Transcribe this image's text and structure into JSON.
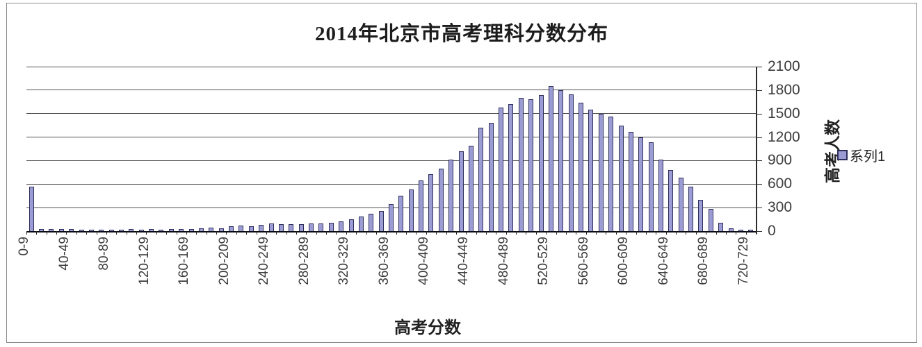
{
  "chart": {
    "title": "2014年北京市高考理科分数分布",
    "x_axis_title": "高考分数",
    "y_axis_title": "高考人数",
    "legend_label": "系列1",
    "bar_fill_color": "#9c9cd4",
    "bar_border_color": "#2e2e5c",
    "gridline_color": "#4f4f4f"
  },
  "chart_data": {
    "type": "bar",
    "title": "2014年北京市高考理科分数分布",
    "xlabel": "高考分数",
    "ylabel": "高考人数",
    "series_name": "系列1",
    "ylim": [
      0,
      2100
    ],
    "y_ticks": [
      0,
      300,
      600,
      900,
      1200,
      1500,
      1800,
      2100
    ],
    "grid": true,
    "legend_position": "right",
    "x_label_every": 4,
    "categories": [
      "0-9",
      "10-19",
      "20-29",
      "30-39",
      "40-49",
      "50-59",
      "60-69",
      "70-79",
      "80-89",
      "90-99",
      "100-109",
      "110-119",
      "120-129",
      "130-139",
      "140-149",
      "150-159",
      "160-169",
      "170-179",
      "180-189",
      "190-199",
      "200-209",
      "210-219",
      "220-229",
      "230-239",
      "240-249",
      "250-259",
      "260-269",
      "270-279",
      "280-289",
      "290-299",
      "300-309",
      "310-319",
      "320-329",
      "330-339",
      "340-349",
      "350-359",
      "360-369",
      "370-379",
      "380-389",
      "390-399",
      "400-409",
      "410-419",
      "420-429",
      "430-439",
      "440-449",
      "450-459",
      "460-469",
      "470-479",
      "480-489",
      "490-499",
      "500-509",
      "510-519",
      "520-529",
      "530-539",
      "540-549",
      "550-559",
      "560-569",
      "570-579",
      "580-589",
      "590-599",
      "600-609",
      "610-619",
      "620-629",
      "630-639",
      "640-649",
      "650-659",
      "660-669",
      "670-679",
      "680-689",
      "690-699",
      "700-709",
      "710-719",
      "720-729"
    ],
    "values": [
      570,
      30,
      25,
      30,
      25,
      20,
      15,
      20,
      15,
      20,
      25,
      20,
      25,
      20,
      25,
      30,
      25,
      35,
      45,
      40,
      60,
      75,
      65,
      80,
      95,
      85,
      90,
      85,
      95,
      100,
      110,
      125,
      150,
      185,
      220,
      260,
      350,
      455,
      530,
      650,
      730,
      800,
      910,
      1015,
      1090,
      1320,
      1380,
      1575,
      1620,
      1700,
      1680,
      1740,
      1850,
      1800,
      1750,
      1640,
      1550,
      1500,
      1460,
      1350,
      1270,
      1200,
      1130,
      910,
      780,
      680,
      570,
      400,
      280,
      105,
      35,
      20,
      15
    ],
    "bar_color": "#9c9cd4"
  }
}
